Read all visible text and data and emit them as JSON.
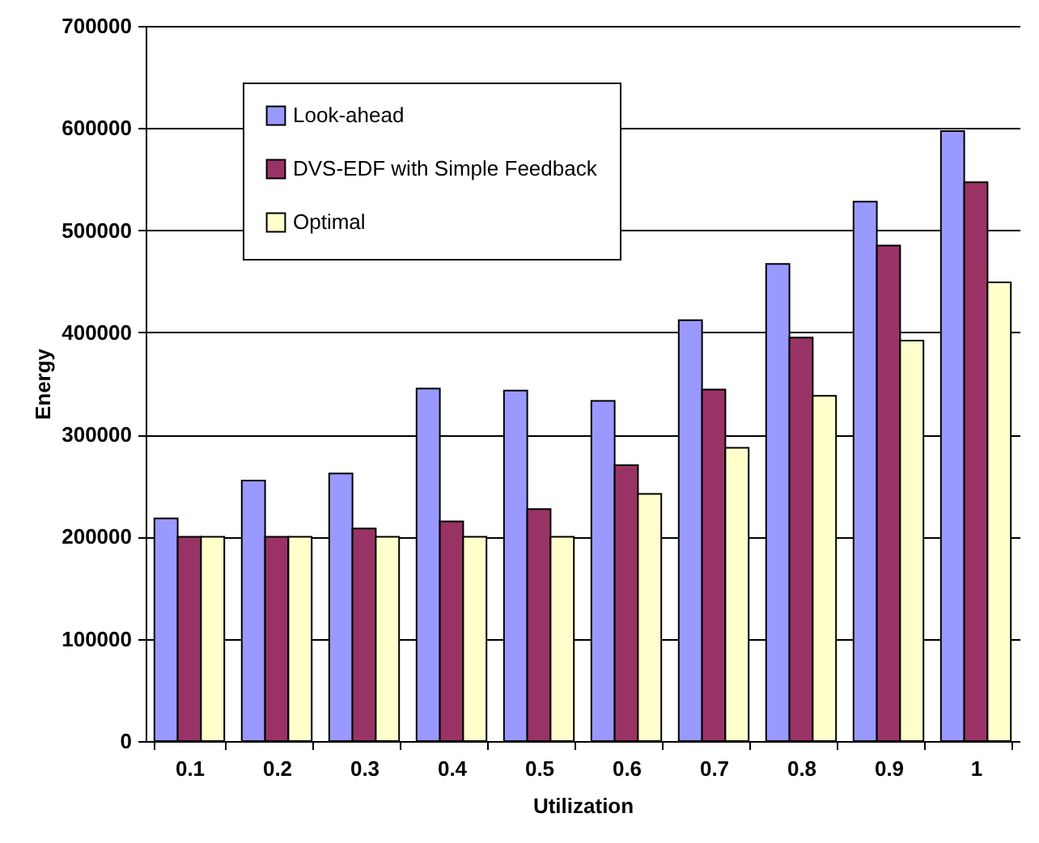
{
  "chart_data": {
    "type": "bar",
    "xlabel": "Utilization",
    "ylabel": "Energy",
    "categories": [
      "0.1",
      "0.2",
      "0.3",
      "0.4",
      "0.5",
      "0.6",
      "0.7",
      "0.8",
      "0.9",
      "1"
    ],
    "series": [
      {
        "name": "Look-ahead",
        "color": "#9999ff",
        "values": [
          218000,
          255000,
          262000,
          345000,
          343000,
          333000,
          412000,
          467000,
          528000,
          597000
        ]
      },
      {
        "name": "DVS-EDF with Simple Feedback",
        "color": "#993366",
        "values": [
          200000,
          200000,
          208000,
          215000,
          227000,
          270000,
          344000,
          395000,
          485000,
          547000
        ]
      },
      {
        "name": "Optimal",
        "color": "#ffffcc",
        "values": [
          200000,
          200000,
          200000,
          200000,
          200000,
          242000,
          287000,
          338000,
          392000,
          449000
        ]
      }
    ],
    "ylim": [
      0,
      700000
    ],
    "yticks": [
      0,
      100000,
      200000,
      300000,
      400000,
      500000,
      600000,
      700000
    ],
    "grid": "y",
    "legend": "top left"
  }
}
